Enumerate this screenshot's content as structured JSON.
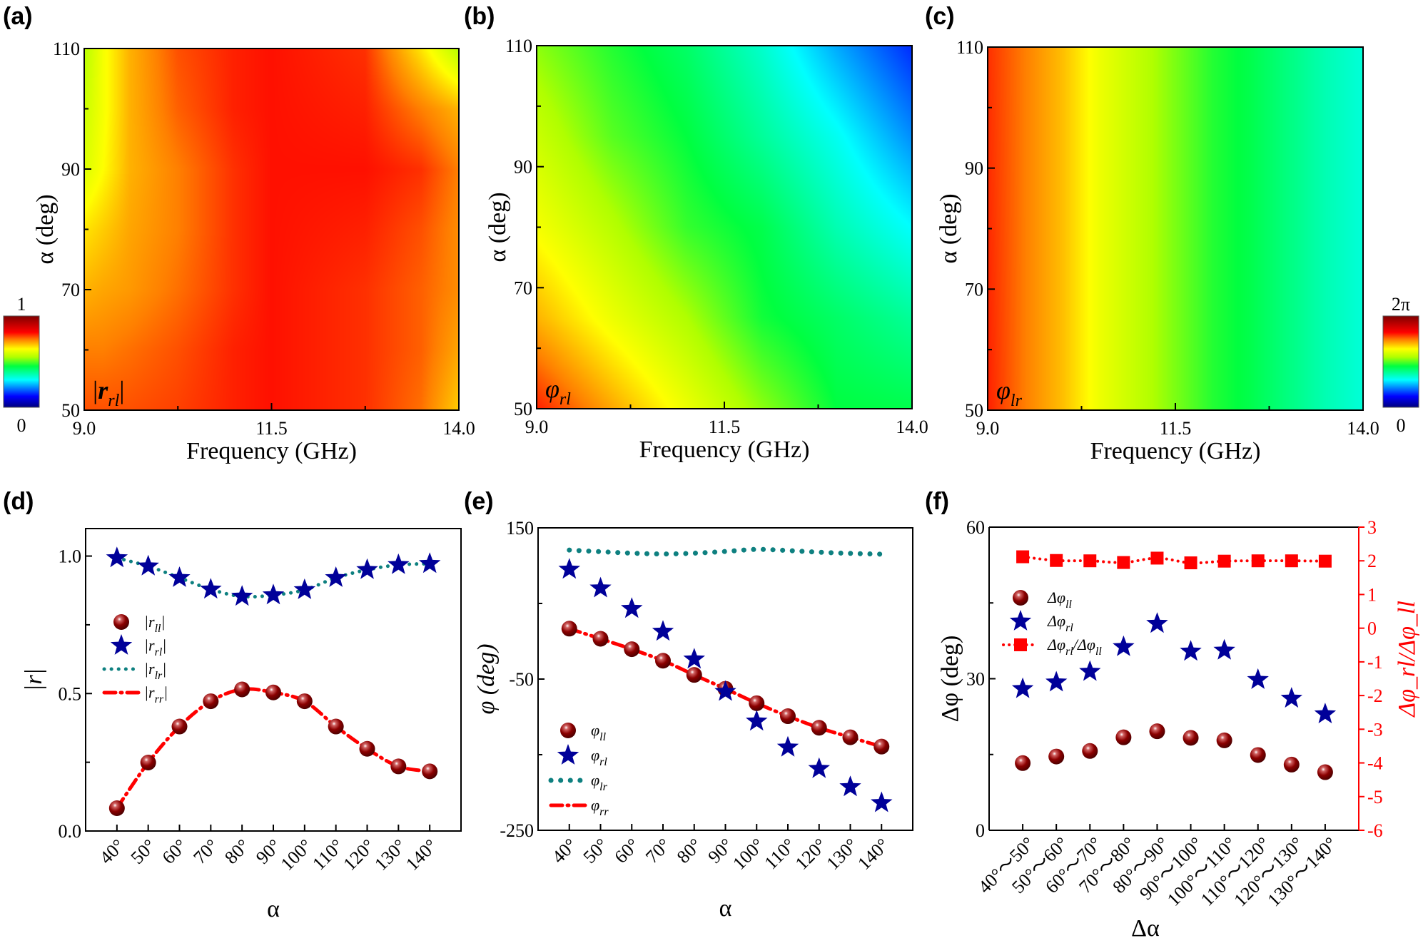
{
  "figure": {
    "panel_letters": [
      "(a)",
      "(b)",
      "(c)",
      "(d)",
      "(e)",
      "(f)"
    ]
  },
  "chart_data": [
    {
      "id": "a",
      "type": "heatmap",
      "title": "",
      "label": "|r_rl|",
      "label_main": "|r",
      "label_sub": "rl",
      "label_close": "|",
      "xlabel": "Frequency (GHz)",
      "ylabel": "α (deg)",
      "xlim": [
        9.0,
        14.0
      ],
      "ylim": [
        50,
        110
      ],
      "xticks": [
        "9.0",
        "11.5",
        "14.0"
      ],
      "xtick_values": [
        9.0,
        11.5,
        14.0
      ],
      "xminor": [
        10.25,
        12.75
      ],
      "yticks": [
        "50",
        "70",
        "90",
        "110"
      ],
      "ytick_values": [
        50,
        70,
        90,
        110
      ],
      "yminor": [
        60,
        80,
        100
      ],
      "colorbar": {
        "min_label": "0",
        "max_label": "1",
        "min": 0,
        "max": 1,
        "placement": "left"
      },
      "grid_x": [
        9.0,
        9.25,
        9.6,
        10.25,
        11.0,
        11.5,
        12.75,
        13.5,
        14.0
      ],
      "grid_y": [
        110,
        100,
        90,
        80,
        70,
        60,
        50
      ],
      "values": [
        [
          0.56,
          0.63,
          0.7,
          0.77,
          0.8,
          0.81,
          0.79,
          0.66,
          0.56
        ],
        [
          0.58,
          0.63,
          0.7,
          0.76,
          0.8,
          0.81,
          0.8,
          0.74,
          0.7
        ],
        [
          0.6,
          0.64,
          0.7,
          0.74,
          0.79,
          0.81,
          0.81,
          0.79,
          0.74
        ],
        [
          0.66,
          0.68,
          0.71,
          0.74,
          0.79,
          0.81,
          0.8,
          0.77,
          0.73
        ],
        [
          0.7,
          0.71,
          0.72,
          0.75,
          0.79,
          0.81,
          0.79,
          0.76,
          0.73
        ],
        [
          0.74,
          0.74,
          0.75,
          0.77,
          0.8,
          0.81,
          0.79,
          0.76,
          0.71
        ],
        [
          0.77,
          0.77,
          0.77,
          0.78,
          0.8,
          0.81,
          0.79,
          0.75,
          0.68
        ]
      ]
    },
    {
      "id": "b",
      "type": "heatmap",
      "title": "",
      "label": "φ_rl",
      "label_main": "φ",
      "label_sub": "rl",
      "xlabel": "Frequency (GHz)",
      "ylabel": "α (deg)",
      "xlim": [
        9.0,
        14.0
      ],
      "ylim": [
        50,
        110
      ],
      "xticks": [
        "9.0",
        "11.5",
        "14.0"
      ],
      "xtick_values": [
        9.0,
        11.5,
        14.0
      ],
      "xminor": [
        10.25,
        12.75
      ],
      "yticks": [
        "50",
        "70",
        "90",
        "110"
      ],
      "ytick_values": [
        50,
        70,
        90,
        110
      ],
      "yminor": [
        60,
        80,
        100
      ],
      "grid_x": [
        9.0,
        10.0,
        11.0,
        12.0,
        13.0,
        14.0
      ],
      "grid_y": [
        110,
        95,
        80,
        65,
        50
      ],
      "values": [
        [
          0.53,
          0.47,
          0.42,
          0.34,
          0.24,
          0.15
        ],
        [
          0.58,
          0.5,
          0.45,
          0.38,
          0.31,
          0.22
        ],
        [
          0.63,
          0.56,
          0.48,
          0.44,
          0.36,
          0.3
        ],
        [
          0.7,
          0.62,
          0.55,
          0.46,
          0.42,
          0.38
        ],
        [
          0.8,
          0.71,
          0.62,
          0.53,
          0.45,
          0.44
        ]
      ]
    },
    {
      "id": "c",
      "type": "heatmap",
      "title": "",
      "label": "φ_lr",
      "label_main": "φ",
      "label_sub": "lr",
      "xlabel": "Frequency (GHz)",
      "ylabel": "α (deg)",
      "xlim": [
        9.0,
        14.0
      ],
      "ylim": [
        50,
        110
      ],
      "xticks": [
        "9.0",
        "11.5",
        "14.0"
      ],
      "xtick_values": [
        9.0,
        11.5,
        14.0
      ],
      "xminor": [
        10.25,
        12.75
      ],
      "yticks": [
        "50",
        "70",
        "90",
        "110"
      ],
      "ytick_values": [
        50,
        70,
        90,
        110
      ],
      "yminor": [
        60,
        80,
        100
      ],
      "colorbar": {
        "min_label": "0",
        "max_label": "2π",
        "min": 0,
        "max": 6.283,
        "placement": "right"
      },
      "grid_x": [
        9.0,
        9.5,
        10.0,
        10.5,
        11.0,
        11.5,
        12.0,
        12.5,
        13.0,
        13.5,
        14.0
      ],
      "grid_y": [
        110,
        50
      ],
      "values": [
        [
          0.79,
          0.74,
          0.69,
          0.62,
          0.57,
          0.52,
          0.47,
          0.44,
          0.4,
          0.36,
          0.33
        ],
        [
          0.8,
          0.74,
          0.69,
          0.62,
          0.57,
          0.52,
          0.47,
          0.44,
          0.4,
          0.36,
          0.33
        ]
      ]
    },
    {
      "id": "d",
      "type": "line",
      "title": "",
      "xlabel": "α",
      "ylabel": "|r|",
      "xlim": [
        30,
        150
      ],
      "ylim": [
        0.0,
        1.1
      ],
      "x": [
        40,
        50,
        60,
        70,
        80,
        90,
        100,
        110,
        120,
        130,
        140
      ],
      "xticks": [
        "40°",
        "50°",
        "60°",
        "70°",
        "80°",
        "90°",
        "100°",
        "110°",
        "120°",
        "130°",
        "140°"
      ],
      "yticks": [
        "0.0",
        "0.5",
        "1.0"
      ],
      "ytick_values": [
        0.0,
        0.5,
        1.0
      ],
      "yminor": [
        0.25,
        0.75
      ],
      "legend_position": "center-left",
      "series": [
        {
          "name": "|r_ll|",
          "label_main": "|r",
          "label_sub": "ll",
          "style": "ball",
          "color": "#8b0000",
          "values": [
            0.083,
            0.249,
            0.38,
            0.472,
            0.515,
            0.504,
            0.472,
            0.38,
            0.299,
            0.235,
            0.217
          ]
        },
        {
          "name": "|r_rl|",
          "label_main": "|r",
          "label_sub": "rl",
          "style": "star",
          "color": "#000099",
          "values": [
            0.993,
            0.963,
            0.921,
            0.879,
            0.853,
            0.858,
            0.877,
            0.921,
            0.95,
            0.968,
            0.972
          ]
        },
        {
          "name": "|r_lr|",
          "label_main": "|r",
          "label_sub": "lr",
          "style": "dotted",
          "color": "#0e8080",
          "values": [
            0.993,
            0.963,
            0.921,
            0.879,
            0.853,
            0.858,
            0.877,
            0.921,
            0.95,
            0.968,
            0.972
          ]
        },
        {
          "name": "|r_rr|",
          "label_main": "|r",
          "label_sub": "rr",
          "style": "dashdot",
          "color": "#ff0000",
          "values": [
            0.083,
            0.249,
            0.38,
            0.472,
            0.515,
            0.504,
            0.472,
            0.38,
            0.299,
            0.235,
            0.217
          ]
        }
      ]
    },
    {
      "id": "e",
      "type": "line",
      "title": "",
      "xlabel": "α",
      "ylabel": "φ (deg)",
      "xlim": [
        30,
        150
      ],
      "ylim": [
        -250,
        150
      ],
      "x": [
        40,
        50,
        60,
        70,
        80,
        90,
        100,
        110,
        120,
        130,
        140
      ],
      "xticks": [
        "40°",
        "50°",
        "60°",
        "70°",
        "80°",
        "90°",
        "100°",
        "110°",
        "120°",
        "130°",
        "140°"
      ],
      "yticks": [
        "-250",
        "-50",
        "150"
      ],
      "ytick_values": [
        -250,
        -50,
        150
      ],
      "yminor": [
        -150,
        50
      ],
      "legend_position": "bottom-left",
      "series": [
        {
          "name": "φ_ll",
          "label_main": "φ",
          "label_sub": "ll",
          "style": "ball",
          "color": "#8b0000",
          "values": [
            16.7,
            3.3,
            -10.5,
            -25.7,
            -44.5,
            -62.8,
            -81.9,
            -99.1,
            -114.4,
            -127.0,
            -139.3
          ]
        },
        {
          "name": "φ_rl",
          "label_main": "φ",
          "label_sub": "rl",
          "style": "star",
          "color": "#000099",
          "values": [
            95.0,
            70.2,
            43.1,
            12.9,
            -23.8,
            -66.6,
            -105.9,
            -140.3,
            -168.6,
            -192.7,
            -213.7
          ]
        },
        {
          "name": "φ_lr",
          "label_main": "φ",
          "label_sub": "lr",
          "style": "bigdotted",
          "color": "#0e8080",
          "values": [
            120.6,
            118.5,
            116.5,
            115.5,
            116.5,
            118.8,
            121.5,
            120.0,
            117.8,
            116.2,
            115.2
          ]
        },
        {
          "name": "φ_rr",
          "label_main": "φ",
          "label_sub": "rr",
          "style": "dashdot",
          "color": "#ff0000",
          "values": [
            16.7,
            3.3,
            -10.5,
            -25.7,
            -44.5,
            -62.8,
            -81.9,
            -99.1,
            -114.4,
            -127.0,
            -139.3
          ]
        }
      ]
    },
    {
      "id": "f",
      "type": "scatter",
      "title": "",
      "xlabel": "Δα",
      "ylabel": "Δφ (deg)",
      "ylabel_right": "Δφ_rl/Δφ_ll",
      "categories": [
        "40°～50°",
        "50°～60°",
        "60°～70°",
        "70°～80°",
        "80°～90°",
        "90°～100°",
        "100°～110°",
        "110°～120°",
        "120°～130°",
        "130°～140°"
      ],
      "ylim": [
        0,
        60
      ],
      "ylim_right": [
        -6,
        3
      ],
      "yticks": [
        "0",
        "30",
        "60"
      ],
      "ytick_values": [
        0,
        30,
        60
      ],
      "yminor": [
        15,
        45
      ],
      "yticks_right": [
        "-6",
        "-5",
        "-4",
        "-3",
        "-2",
        "-1",
        "0",
        "1",
        "2",
        "3"
      ],
      "ytick_values_right": [
        -6,
        -5,
        -4,
        -3,
        -2,
        -1,
        0,
        1,
        2,
        3
      ],
      "right_axis_color": "#ff0000",
      "legend_position": "top-left",
      "series": [
        {
          "name": "Δφ_ll",
          "label_main": "Δφ",
          "label_sub": "ll",
          "style": "ball",
          "color": "#8b0000",
          "axis": "left",
          "values": [
            13.3,
            14.6,
            15.7,
            18.4,
            19.6,
            18.3,
            17.8,
            14.9,
            13.0,
            11.5
          ]
        },
        {
          "name": "Δφ_rl",
          "label_main": "Δφ",
          "label_sub": "rl",
          "style": "star",
          "color": "#000099",
          "axis": "left",
          "values": [
            28.0,
            29.3,
            31.4,
            36.3,
            40.9,
            35.4,
            35.6,
            29.8,
            26.1,
            23.0
          ]
        },
        {
          "name": "Δφ_rl/Δφ_ll",
          "label_main": "Δφ",
          "label_sub": "rl",
          "label_main2": "/Δφ",
          "label_sub2": "ll",
          "style": "square-dotted",
          "color": "#ff0000",
          "axis": "right",
          "values": [
            2.12,
            2.01,
            2.0,
            1.95,
            2.08,
            1.94,
            1.99,
            2.0,
            2.0,
            1.99
          ]
        }
      ]
    }
  ]
}
